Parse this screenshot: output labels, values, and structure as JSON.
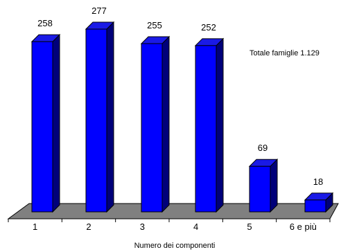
{
  "chart_data": {
    "type": "bar",
    "categories": [
      "1",
      "2",
      "3",
      "4",
      "5",
      "6 e più"
    ],
    "values": [
      258,
      277,
      255,
      252,
      69,
      18
    ],
    "xlabel": "Numero dei componenti",
    "ylabel": "",
    "ylim": [
      0,
      280
    ],
    "annotation": "Totale famiglie 1.129",
    "grid": false,
    "bar_color": "#0000ff",
    "bar_side_color": "#00007a",
    "bar_top_color": "#1a1ae6",
    "floor_color": "#808080"
  }
}
